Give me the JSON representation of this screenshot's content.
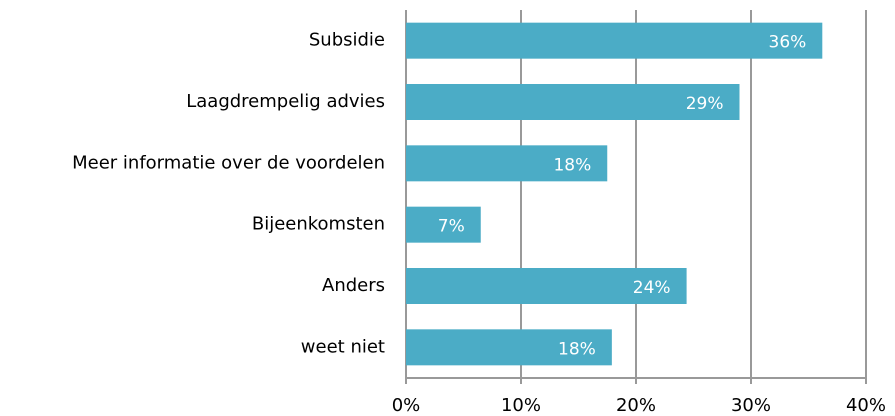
{
  "chart_data": {
    "type": "bar",
    "orientation": "horizontal",
    "categories": [
      "Subsidie",
      "Laagdrempelig advies",
      "Meer informatie over de voordelen",
      "Bijeenkomsten",
      "Anders",
      "weet niet"
    ],
    "values": [
      36.2,
      29,
      17.5,
      6.5,
      24.4,
      17.9
    ],
    "value_labels": [
      "36%",
      "29%",
      "18%",
      "7%",
      "24%",
      "18%"
    ],
    "color": "#4bacc6",
    "xlim": [
      0,
      40
    ],
    "xticks": [
      {
        "value": 0,
        "label": "0%"
      },
      {
        "value": 10,
        "label": "10%"
      },
      {
        "value": 20,
        "label": "20%"
      },
      {
        "value": 30,
        "label": "30%"
      },
      {
        "value": 40,
        "label": "40%"
      }
    ],
    "grid": true
  }
}
